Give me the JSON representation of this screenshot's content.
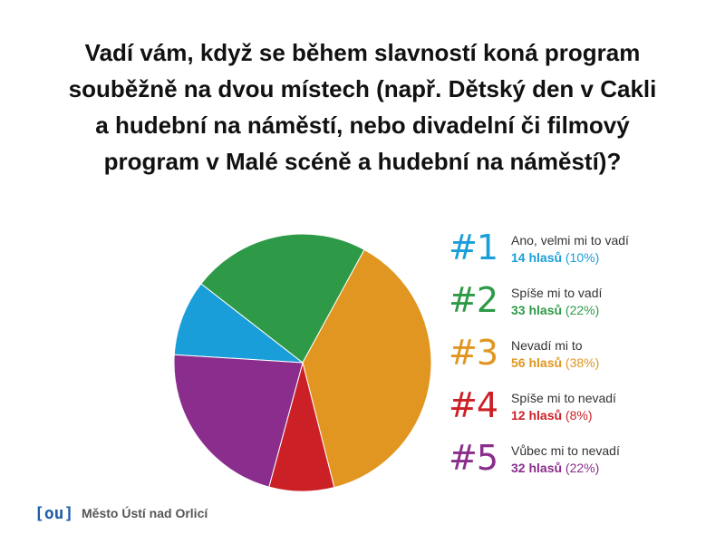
{
  "question": {
    "lines": [
      "Vadí vám, když se během slavností koná program",
      "souběžně na dvou místech (např. Dětský den v Cakli",
      "a hudební na náměstí, nebo divadelní či filmový",
      "program v Malé scéně a hudební na náměstí)?"
    ]
  },
  "chart_data": {
    "type": "pie",
    "title": "Vadí vám, když se během slavností koná program souběžně na dvou místech (např. Dětský den v Cakli a hudební na náměstí, nebo divadelní či filmový program v Malé scéně a hudební na náměstí)?",
    "legend_position": "right",
    "slices": [
      {
        "rank": "#1",
        "label": "Ano, velmi mi to vadí",
        "votes": 14,
        "votes_text": "14 hlasů",
        "percent_text": "(10%)",
        "color": "#1a9ed9"
      },
      {
        "rank": "#2",
        "label": "Spíše mi to vadí",
        "votes": 33,
        "votes_text": "33 hlasů",
        "percent_text": "(22%)",
        "color": "#2e9a47"
      },
      {
        "rank": "#3",
        "label": "Nevadí mi to",
        "votes": 56,
        "votes_text": "56 hlasů",
        "percent_text": "(38%)",
        "color": "#e09620"
      },
      {
        "rank": "#4",
        "label": "Spíše mi to nevadí",
        "votes": 12,
        "votes_text": "12 hlasů",
        "percent_text": "(8%)",
        "color": "#cc2027"
      },
      {
        "rank": "#5",
        "label": "Vůbec mi to nevadí",
        "votes": 32,
        "votes_text": "32 hlasů",
        "percent_text": "(22%)",
        "color": "#8a2d8c"
      }
    ]
  },
  "footer": {
    "logo_text": "[ou]",
    "org_name": "Město Ústí nad Orlicí"
  }
}
